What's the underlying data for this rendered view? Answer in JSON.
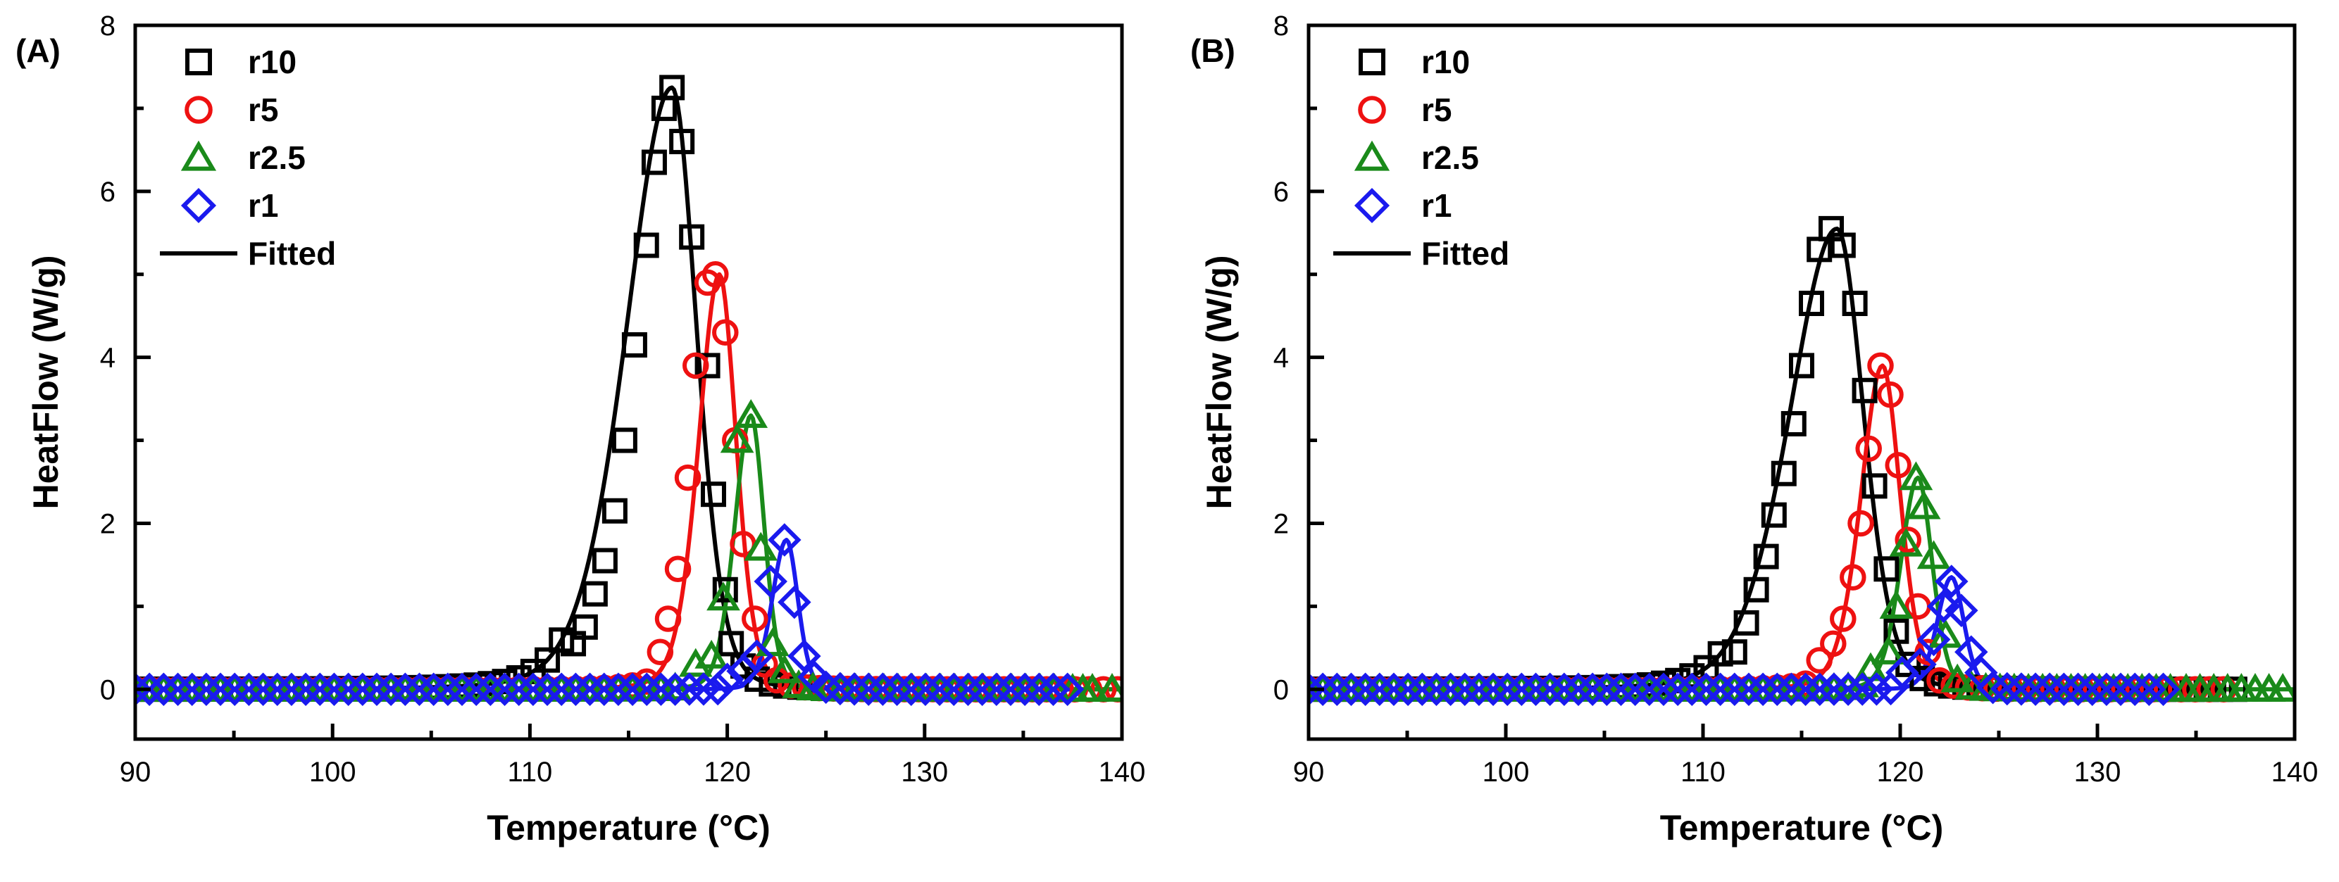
{
  "chart_data": [
    {
      "type": "scatter",
      "panel_label": "(A)",
      "xlabel": "Temperature (°C)",
      "ylabel": "HeatFlow (W/g)",
      "xlim": [
        90,
        140
      ],
      "ylim": [
        -0.6,
        8
      ],
      "xticks": [
        "90",
        "100",
        "110",
        "120",
        "130",
        "140"
      ],
      "yticks": [
        "0",
        "2",
        "4",
        "6",
        "8"
      ],
      "legend_position": "top-left",
      "fit_label": "Fitted",
      "series": [
        {
          "name": "r10",
          "color": "#000000",
          "marker": "square",
          "peak": {
            "x": 117.2,
            "y": 7.25,
            "width_left": 2.4,
            "width_right": 1.3,
            "tail": 0.38,
            "end": 124
          },
          "points": [
            [
              112.2,
              0.55
            ],
            [
              112.8,
              0.75
            ],
            [
              113.3,
              1.15
            ],
            [
              113.8,
              1.55
            ],
            [
              114.3,
              2.15
            ],
            [
              114.8,
              3.0
            ],
            [
              115.3,
              4.15
            ],
            [
              115.9,
              5.35
            ],
            [
              116.3,
              6.35
            ],
            [
              116.8,
              7.0
            ],
            [
              117.2,
              7.25
            ],
            [
              117.7,
              6.6
            ],
            [
              118.2,
              5.45
            ],
            [
              119.0,
              3.9
            ],
            [
              119.3,
              2.35
            ],
            [
              119.9,
              1.2
            ],
            [
              120.2,
              0.55
            ]
          ]
        },
        {
          "name": "r5",
          "color": "#ee1111",
          "marker": "circle",
          "peak": {
            "x": 119.6,
            "y": 5.0,
            "width_left": 1.1,
            "width_right": 0.9,
            "tail": 0.45,
            "end": 140
          },
          "points": [
            [
              116.6,
              0.45
            ],
            [
              117.0,
              0.85
            ],
            [
              117.5,
              1.45
            ],
            [
              118.0,
              2.55
            ],
            [
              118.4,
              3.9
            ],
            [
              119.0,
              4.9
            ],
            [
              119.4,
              5.0
            ],
            [
              119.9,
              4.3
            ],
            [
              120.4,
              3.0
            ],
            [
              120.8,
              1.75
            ],
            [
              121.4,
              0.85
            ],
            [
              121.9,
              0.3
            ]
          ]
        },
        {
          "name": "r2.5",
          "color": "#1a8a1a",
          "marker": "triangle",
          "peak": {
            "x": 121.2,
            "y": 3.3,
            "width_left": 0.85,
            "width_right": 0.7,
            "tail": 0.35,
            "end": 140
          },
          "points": [
            [
              118.4,
              0.3
            ],
            [
              119.2,
              0.4
            ],
            [
              119.8,
              1.1
            ],
            [
              120.5,
              3.0
            ],
            [
              121.2,
              3.3
            ],
            [
              121.7,
              1.7
            ],
            [
              122.3,
              0.55
            ],
            [
              137.5,
              0.0
            ],
            [
              138.5,
              0.0
            ],
            [
              139.5,
              0.0
            ]
          ]
        },
        {
          "name": "r1",
          "color": "#1a1aee",
          "marker": "diamond",
          "peak": {
            "x": 123.0,
            "y": 1.8,
            "width_left": 0.75,
            "width_right": 0.6,
            "tail": 0.3,
            "end": 137.5
          },
          "points": [
            [
              120.0,
              0.12
            ],
            [
              120.8,
              0.22
            ],
            [
              121.5,
              0.4
            ],
            [
              122.2,
              1.3
            ],
            [
              122.9,
              1.8
            ],
            [
              123.4,
              1.05
            ],
            [
              123.9,
              0.4
            ],
            [
              124.4,
              0.15
            ]
          ]
        }
      ]
    },
    {
      "type": "scatter",
      "panel_label": "(B)",
      "xlabel": "Temperature  (°C)",
      "ylabel": "HeatFlow (W/g)",
      "xlim": [
        90,
        140
      ],
      "ylim": [
        -0.6,
        8
      ],
      "xticks": [
        "90",
        "100",
        "110",
        "120",
        "130",
        "140"
      ],
      "yticks": [
        "0",
        "2",
        "4",
        "6",
        "8"
      ],
      "legend_position": "top-left",
      "fit_label": "Fitted",
      "series": [
        {
          "name": "r10",
          "color": "#000000",
          "marker": "square",
          "peak": {
            "x": 116.8,
            "y": 5.55,
            "width_left": 2.5,
            "width_right": 1.4,
            "tail": 0.38,
            "end": 137.5
          },
          "points": [
            [
              111.6,
              0.45
            ],
            [
              112.2,
              0.8
            ],
            [
              112.7,
              1.2
            ],
            [
              113.2,
              1.6
            ],
            [
              113.6,
              2.1
            ],
            [
              114.1,
              2.6
            ],
            [
              114.6,
              3.2
            ],
            [
              115.0,
              3.9
            ],
            [
              115.5,
              4.65
            ],
            [
              115.9,
              5.3
            ],
            [
              116.5,
              5.55
            ],
            [
              117.1,
              5.35
            ],
            [
              117.7,
              4.65
            ],
            [
              118.2,
              3.6
            ],
            [
              118.7,
              2.45
            ],
            [
              119.3,
              1.45
            ],
            [
              119.8,
              0.7
            ]
          ]
        },
        {
          "name": "r5",
          "color": "#ee1111",
          "marker": "circle",
          "peak": {
            "x": 119.1,
            "y": 3.9,
            "width_left": 1.15,
            "width_right": 0.95,
            "tail": 0.45,
            "end": 137.0
          },
          "points": [
            [
              115.9,
              0.35
            ],
            [
              116.6,
              0.55
            ],
            [
              117.1,
              0.85
            ],
            [
              117.6,
              1.35
            ],
            [
              118.0,
              2.0
            ],
            [
              118.4,
              2.9
            ],
            [
              119.0,
              3.9
            ],
            [
              119.5,
              3.55
            ],
            [
              119.9,
              2.7
            ],
            [
              120.4,
              1.8
            ],
            [
              120.9,
              1.0
            ],
            [
              121.4,
              0.45
            ]
          ]
        },
        {
          "name": "r2.5",
          "color": "#1a8a1a",
          "marker": "triangle",
          "peak": {
            "x": 120.9,
            "y": 2.55,
            "width_left": 0.9,
            "width_right": 0.75,
            "tail": 0.35,
            "end": 140
          },
          "points": [
            [
              118.5,
              0.25
            ],
            [
              119.4,
              0.45
            ],
            [
              119.8,
              1.0
            ],
            [
              120.3,
              1.75
            ],
            [
              120.8,
              2.55
            ],
            [
              121.2,
              2.2
            ],
            [
              121.7,
              1.6
            ],
            [
              122.3,
              0.65
            ],
            [
              134.5,
              0.0
            ],
            [
              135.2,
              0.0
            ],
            [
              135.9,
              0.0
            ],
            [
              136.6,
              0.0
            ],
            [
              137.3,
              0.0
            ],
            [
              138.0,
              0.0
            ],
            [
              138.7,
              0.0
            ],
            [
              139.4,
              0.0
            ]
          ]
        },
        {
          "name": "r1",
          "color": "#1a1aee",
          "marker": "diamond",
          "peak": {
            "x": 122.6,
            "y": 1.35,
            "width_left": 0.75,
            "width_right": 0.65,
            "tail": 0.3,
            "end": 134
          },
          "points": [
            [
              120.1,
              0.2
            ],
            [
              121.0,
              0.3
            ],
            [
              121.7,
              0.6
            ],
            [
              122.2,
              1.0
            ],
            [
              122.6,
              1.3
            ],
            [
              123.1,
              0.95
            ],
            [
              123.6,
              0.45
            ],
            [
              124.1,
              0.2
            ]
          ]
        }
      ]
    }
  ]
}
